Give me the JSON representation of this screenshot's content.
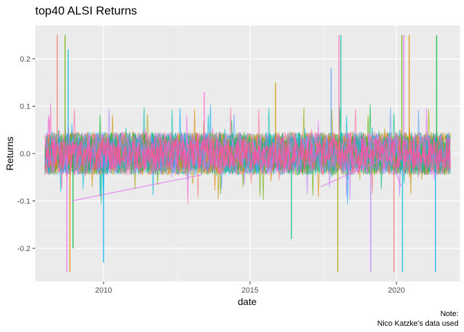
{
  "chart_data": {
    "type": "line",
    "title": "top40 ALSI Returns",
    "xlabel": "date",
    "ylabel": "Returns",
    "caption_lines": [
      "Note:",
      "Nico Katzke's data used"
    ],
    "x_ticks": [
      "2010",
      "2015",
      "2020"
    ],
    "y_ticks": [
      "-0.2",
      "-0.1",
      "0.0",
      "0.1",
      "0.2"
    ],
    "xlim": [
      "2007-09",
      "2022-03"
    ],
    "ylim": [
      -0.27,
      0.27
    ],
    "grid": true,
    "legend": "none",
    "background": "#ebebeb",
    "series_colors": [
      "#F8766D",
      "#E58700",
      "#C99800",
      "#A3A500",
      "#6BB100",
      "#00BA38",
      "#00BF7D",
      "#00C0AF",
      "#00BCD8",
      "#00B0F6",
      "#619CFF",
      "#B983FF",
      "#E76BF3",
      "#FD61D1",
      "#FF67A4"
    ],
    "typical_band": [
      -0.05,
      0.05
    ],
    "spikes": [
      {
        "date": "2008-06",
        "value": 0.25
      },
      {
        "date": "2008-09",
        "value": 0.25
      },
      {
        "date": "2008-10",
        "value": 0.22
      },
      {
        "date": "2008-10",
        "value": -0.25
      },
      {
        "date": "2008-11",
        "value": -0.25
      },
      {
        "date": "2008-12",
        "value": -0.2
      },
      {
        "date": "2010-01",
        "value": -0.23
      },
      {
        "date": "2013-06",
        "value": 0.13
      },
      {
        "date": "2015-11",
        "value": 0.15
      },
      {
        "date": "2016-06",
        "value": -0.18
      },
      {
        "date": "2017-10",
        "value": 0.18
      },
      {
        "date": "2018-01",
        "value": 0.25
      },
      {
        "date": "2018-01",
        "value": -0.25
      },
      {
        "date": "2018-02",
        "value": 0.25
      },
      {
        "date": "2019-02",
        "value": -0.25
      },
      {
        "date": "2019-12",
        "value": -0.25
      },
      {
        "date": "2020-03",
        "value": 0.25
      },
      {
        "date": "2020-03",
        "value": -0.25
      },
      {
        "date": "2020-04",
        "value": 0.25
      },
      {
        "date": "2020-06",
        "value": 0.25
      },
      {
        "date": "2021-05",
        "value": 0.25
      },
      {
        "date": "2021-05",
        "value": -0.25
      }
    ],
    "connector_lines": [
      {
        "from": [
          "2008-12",
          -0.1
        ],
        "to": [
          "2013-05",
          -0.045
        ]
      },
      {
        "from": [
          "2017-06",
          -0.07
        ],
        "to": [
          "2019-10",
          -0.005
        ]
      },
      {
        "from": [
          "2019-10",
          -0.005
        ],
        "to": [
          "2020-03",
          -0.07
        ]
      }
    ]
  }
}
